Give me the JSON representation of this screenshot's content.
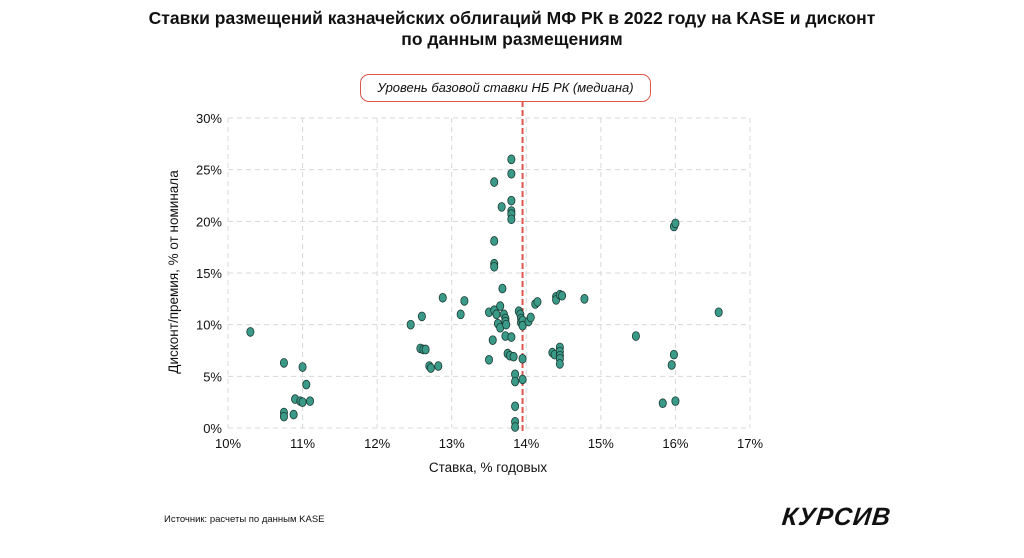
{
  "chart_data": {
    "type": "scatter",
    "title": [
      "Ставки размещений казначейских облигаций МФ РК в 2022 году на KASE и дисконт",
      "по данным размещениям"
    ],
    "annotation": "Уровень базовой ставки НБ РК (медиана)",
    "xlabel": "Ставка, % годовых",
    "ylabel": "Дисконт/премия, % от номинала",
    "xlim": [
      10,
      17
    ],
    "ylim": [
      0,
      30
    ],
    "xticks": [
      10,
      11,
      12,
      13,
      14,
      15,
      16,
      17
    ],
    "yticks": [
      0,
      5,
      10,
      15,
      20,
      25,
      30
    ],
    "xtick_labels": [
      "10%",
      "11%",
      "12%",
      "13%",
      "14%",
      "15%",
      "16%",
      "17%"
    ],
    "ytick_labels": [
      "0%",
      "5%",
      "10%",
      "15%",
      "20%",
      "25%",
      "30%"
    ],
    "reference_line_x": 13.95,
    "grid": true,
    "colors": {
      "points": "#3a9a87",
      "point_edge": "#1a3a33",
      "reference_line": "#e0564f",
      "grid": "#d8d8d8"
    },
    "points": [
      [
        10.3,
        9.3
      ],
      [
        10.75,
        6.3
      ],
      [
        10.75,
        1.5
      ],
      [
        10.75,
        1.1
      ],
      [
        10.88,
        1.3
      ],
      [
        10.9,
        2.8
      ],
      [
        10.97,
        2.6
      ],
      [
        11.0,
        2.5
      ],
      [
        11.0,
        5.9
      ],
      [
        11.05,
        4.2
      ],
      [
        11.1,
        2.6
      ],
      [
        12.45,
        10.0
      ],
      [
        12.58,
        7.7
      ],
      [
        12.62,
        7.6
      ],
      [
        12.65,
        7.6
      ],
      [
        12.6,
        10.8
      ],
      [
        12.7,
        6.0
      ],
      [
        12.72,
        5.8
      ],
      [
        12.82,
        6.0
      ],
      [
        12.88,
        12.6
      ],
      [
        13.12,
        11.0
      ],
      [
        13.17,
        12.3
      ],
      [
        13.5,
        11.2
      ],
      [
        13.5,
        6.6
      ],
      [
        13.55,
        8.5
      ],
      [
        13.57,
        23.8
      ],
      [
        13.57,
        18.1
      ],
      [
        13.57,
        15.9
      ],
      [
        13.57,
        15.6
      ],
      [
        13.57,
        11.4
      ],
      [
        13.6,
        11.0
      ],
      [
        13.62,
        10.1
      ],
      [
        13.65,
        11.8
      ],
      [
        13.65,
        9.7
      ],
      [
        13.67,
        21.4
      ],
      [
        13.68,
        13.5
      ],
      [
        13.7,
        11.0
      ],
      [
        13.72,
        10.6
      ],
      [
        13.72,
        10.3
      ],
      [
        13.73,
        10.0
      ],
      [
        13.72,
        8.9
      ],
      [
        13.75,
        7.2
      ],
      [
        13.78,
        7.0
      ],
      [
        13.8,
        26.0
      ],
      [
        13.8,
        24.6
      ],
      [
        13.8,
        22.0
      ],
      [
        13.8,
        21.0
      ],
      [
        13.8,
        20.7
      ],
      [
        13.8,
        20.2
      ],
      [
        13.8,
        8.8
      ],
      [
        13.83,
        6.9
      ],
      [
        13.85,
        5.2
      ],
      [
        13.85,
        4.5
      ],
      [
        13.85,
        2.1
      ],
      [
        13.85,
        0.6
      ],
      [
        13.85,
        0.1
      ],
      [
        13.9,
        11.3
      ],
      [
        13.92,
        11.0
      ],
      [
        13.93,
        10.6
      ],
      [
        13.93,
        10.2
      ],
      [
        13.95,
        10.4
      ],
      [
        13.95,
        9.9
      ],
      [
        13.95,
        6.7
      ],
      [
        13.95,
        4.7
      ],
      [
        14.03,
        10.3
      ],
      [
        14.06,
        10.7
      ],
      [
        14.12,
        12.0
      ],
      [
        14.15,
        12.2
      ],
      [
        14.35,
        7.3
      ],
      [
        14.38,
        7.1
      ],
      [
        14.4,
        12.7
      ],
      [
        14.4,
        12.4
      ],
      [
        14.45,
        12.9
      ],
      [
        14.45,
        7.8
      ],
      [
        14.45,
        7.4
      ],
      [
        14.45,
        7.0
      ],
      [
        14.45,
        6.7
      ],
      [
        14.45,
        6.2
      ],
      [
        14.48,
        12.8
      ],
      [
        14.78,
        12.5
      ],
      [
        15.47,
        8.9
      ],
      [
        15.83,
        2.4
      ],
      [
        15.95,
        6.1
      ],
      [
        15.98,
        7.1
      ],
      [
        15.98,
        19.5
      ],
      [
        16.0,
        19.8
      ],
      [
        16.0,
        2.6
      ],
      [
        16.58,
        11.2
      ]
    ]
  },
  "source": "Источник: расчеты по данным KASE",
  "logo": "КУРСИВ"
}
